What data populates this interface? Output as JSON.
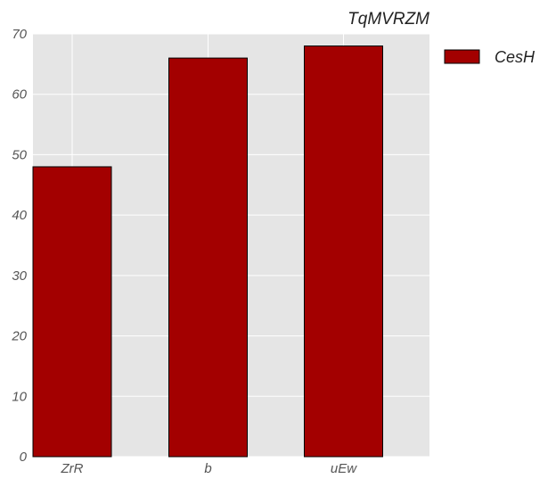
{
  "chart_data": {
    "type": "bar",
    "title": "TqMVRZM",
    "categories": [
      "ZrR",
      "b",
      "uEw"
    ],
    "series": [
      {
        "name": "CesH",
        "values": [
          48,
          66,
          68
        ]
      }
    ],
    "ylim": [
      0,
      70
    ],
    "yticks": [
      0,
      10,
      20,
      30,
      40,
      50,
      60,
      70
    ],
    "grid": true,
    "legend": "top-right",
    "colors": {
      "bar": "#a30000",
      "bar_edge": "#000000",
      "plot_bg": "#e5e5e5",
      "grid": "#ffffff"
    }
  }
}
